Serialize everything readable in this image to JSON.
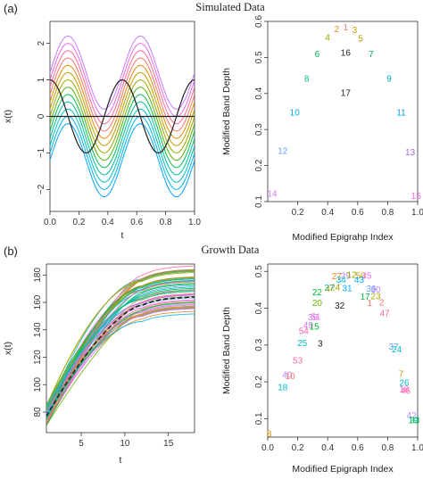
{
  "sections": [
    {
      "label": "(a)",
      "title": "Simulated Data"
    },
    {
      "label": "(b)",
      "title": "Growth Data"
    }
  ],
  "chart_data": [
    {
      "id": "a_curves",
      "type": "line",
      "xlabel": "t",
      "ylabel": "x(t)",
      "xlim": [
        0,
        1
      ],
      "ylim": [
        -2.6,
        2.6
      ],
      "xticks": [
        0.0,
        0.2,
        0.4,
        0.6,
        0.8,
        1.0
      ],
      "xtick_labels": [
        "0.0",
        "0.2",
        "0.4",
        "0.6",
        "0.8",
        "1.0"
      ],
      "yticks": [
        -2,
        -1,
        0,
        1,
        2
      ],
      "ytick_labels": [
        "−2",
        "−1",
        "0",
        "1",
        "2"
      ],
      "curves_model": "x(t) = sin(4·pi·t) + offset",
      "offsets": [
        1.2,
        1.0,
        0.8,
        0.6,
        0.4,
        0.2,
        0.0,
        -0.2,
        -0.4,
        -0.6,
        -0.8,
        -1.0,
        -1.2
      ],
      "reference_lines": [
        {
          "shape": "cos(4·pi·t)",
          "color": "#222222"
        },
        {
          "shape": "0",
          "color": "#222222"
        }
      ],
      "curve_colors": [
        "#C77CFF",
        "#E76BF3",
        "#FF6C91",
        "#F8766D",
        "#E38900",
        "#C49A00",
        "#99A800",
        "#53B400",
        "#00BC56",
        "#00C094",
        "#00BFC4",
        "#00B6EB",
        "#06A4FF",
        "#A58AFF"
      ]
    },
    {
      "id": "a_depth",
      "type": "scatter",
      "xlabel": "Modified Epigrahp Index",
      "ylabel": "Modified Band Depth",
      "xlim": [
        0.0,
        1.0
      ],
      "ylim": [
        0.1,
        0.6
      ],
      "xticks": [
        0.2,
        0.4,
        0.6,
        0.8,
        1.0
      ],
      "xtick_labels": [
        "0.2",
        "0.4",
        "0.6",
        "0.8",
        "1.0"
      ],
      "yticks": [
        0.1,
        0.2,
        0.3,
        0.4,
        0.5,
        0.6
      ],
      "ytick_labels": [
        "0.1",
        "0.2",
        "0.3",
        "0.4",
        "0.5",
        "0.6"
      ],
      "points": [
        {
          "label": "1",
          "x": 0.52,
          "y": 0.582,
          "color": "#F8766D"
        },
        {
          "label": "2",
          "x": 0.46,
          "y": 0.577,
          "color": "#E7861B"
        },
        {
          "label": "3",
          "x": 0.58,
          "y": 0.574,
          "color": "#C09B00"
        },
        {
          "label": "4",
          "x": 0.4,
          "y": 0.553,
          "color": "#A3A500"
        },
        {
          "label": "5",
          "x": 0.62,
          "y": 0.551,
          "color": "#C09B00"
        },
        {
          "label": "6",
          "x": 0.33,
          "y": 0.507,
          "color": "#00A651"
        },
        {
          "label": "16",
          "x": 0.52,
          "y": 0.511,
          "color": "#222222"
        },
        {
          "label": "7",
          "x": 0.69,
          "y": 0.507,
          "color": "#00A651"
        },
        {
          "label": "8",
          "x": 0.26,
          "y": 0.44,
          "color": "#00BA8B"
        },
        {
          "label": "9",
          "x": 0.81,
          "y": 0.44,
          "color": "#00A9B6"
        },
        {
          "label": "17",
          "x": 0.52,
          "y": 0.4,
          "color": "#222222"
        },
        {
          "label": "10",
          "x": 0.18,
          "y": 0.345,
          "color": "#00A2E8"
        },
        {
          "label": "11",
          "x": 0.89,
          "y": 0.345,
          "color": "#00A2E8"
        },
        {
          "label": "12",
          "x": 0.1,
          "y": 0.239,
          "color": "#619CFF"
        },
        {
          "label": "13",
          "x": 0.95,
          "y": 0.235,
          "color": "#9C6AD6"
        },
        {
          "label": "14",
          "x": 0.03,
          "y": 0.12,
          "color": "#C77CFF"
        },
        {
          "label": "15",
          "x": 0.99,
          "y": 0.114,
          "color": "#F564E3"
        }
      ]
    },
    {
      "id": "b_curves",
      "type": "line",
      "xlabel": "t",
      "ylabel": "x(t)",
      "xlim": [
        1,
        18
      ],
      "ylim": [
        65,
        188
      ],
      "xticks": [
        5,
        10,
        15
      ],
      "xtick_labels": [
        "5",
        "10",
        "15"
      ],
      "yticks": [
        80,
        100,
        120,
        140,
        160,
        180
      ],
      "ytick_labels": [
        "80",
        "100",
        "120",
        "140",
        "160",
        "180"
      ],
      "num_curves": 54,
      "final_height_range": [
        152,
        186
      ],
      "start_height_range": [
        70,
        86
      ],
      "curve_colors": [
        "#F8766D",
        "#E7861B",
        "#C99800",
        "#A3A500",
        "#6BB100",
        "#00BA38",
        "#00BF7D",
        "#00C0AF",
        "#00BCD8",
        "#00B0F6",
        "#619CFF",
        "#B983FF",
        "#E76BF3",
        "#FD61D1",
        "#FF67A4"
      ],
      "median_curve": {
        "color": "#222222",
        "dashed": true
      }
    },
    {
      "id": "b_depth",
      "type": "scatter",
      "xlabel": "Modified Epigraph Index",
      "ylabel": "Modified Band Depth",
      "xlim": [
        0.0,
        1.0
      ],
      "ylim": [
        0.05,
        0.52
      ],
      "xticks": [
        0.0,
        0.2,
        0.4,
        0.6,
        0.8,
        1.0
      ],
      "xtick_labels": [
        "0.0",
        "0.2",
        "0.4",
        "0.6",
        "0.8",
        "1.0"
      ],
      "yticks": [
        0.1,
        0.2,
        0.3,
        0.4,
        0.5
      ],
      "ytick_labels": [
        "0.1",
        "0.2",
        "0.3",
        "0.4",
        "0.5"
      ],
      "points": [
        {
          "label": "8",
          "x": 0.01,
          "y": 0.058,
          "color": "#C99800"
        },
        {
          "label": "18",
          "x": 0.1,
          "y": 0.183,
          "color": "#00BCD8"
        },
        {
          "label": "40",
          "x": 0.13,
          "y": 0.218,
          "color": "#B983FF"
        },
        {
          "label": "10",
          "x": 0.15,
          "y": 0.214,
          "color": "#F8766D"
        },
        {
          "label": "53",
          "x": 0.2,
          "y": 0.256,
          "color": "#FF67A4"
        },
        {
          "label": "25",
          "x": 0.23,
          "y": 0.303,
          "color": "#00BFC4"
        },
        {
          "label": "3",
          "x": 0.35,
          "y": 0.302,
          "color": "#222222"
        },
        {
          "label": "54",
          "x": 0.24,
          "y": 0.336,
          "color": "#FF67A4"
        },
        {
          "label": "49",
          "x": 0.27,
          "y": 0.352,
          "color": "#E76BF3"
        },
        {
          "label": "15",
          "x": 0.31,
          "y": 0.348,
          "color": "#00BA38"
        },
        {
          "label": "39",
          "x": 0.3,
          "y": 0.374,
          "color": "#B983FF"
        },
        {
          "label": "51",
          "x": 0.32,
          "y": 0.375,
          "color": "#FD61D1"
        },
        {
          "label": "20",
          "x": 0.33,
          "y": 0.413,
          "color": "#6BB100"
        },
        {
          "label": "22",
          "x": 0.33,
          "y": 0.442,
          "color": "#00BA38"
        },
        {
          "label": "32",
          "x": 0.48,
          "y": 0.405,
          "color": "#222222"
        },
        {
          "label": "37",
          "x": 0.41,
          "y": 0.454,
          "color": "#00B0F6"
        },
        {
          "label": "24",
          "x": 0.45,
          "y": 0.455,
          "color": "#A3A500"
        },
        {
          "label": "4",
          "x": 0.4,
          "y": 0.451,
          "color": "#A3A500"
        },
        {
          "label": "31",
          "x": 0.53,
          "y": 0.453,
          "color": "#00A9FF"
        },
        {
          "label": "27",
          "x": 0.46,
          "y": 0.485,
          "color": "#E7861B"
        },
        {
          "label": "29",
          "x": 0.52,
          "y": 0.487,
          "color": "#B983FF"
        },
        {
          "label": "12",
          "x": 0.56,
          "y": 0.489,
          "color": "#A3A500"
        },
        {
          "label": "50",
          "x": 0.62,
          "y": 0.487,
          "color": "#C99800"
        },
        {
          "label": "45",
          "x": 0.66,
          "y": 0.487,
          "color": "#E76BF3"
        },
        {
          "label": "34",
          "x": 0.49,
          "y": 0.475,
          "color": "#00BCD8"
        },
        {
          "label": "43",
          "x": 0.61,
          "y": 0.476,
          "color": "#00B0F6"
        },
        {
          "label": "36",
          "x": 0.69,
          "y": 0.451,
          "color": "#619CFF"
        },
        {
          "label": "30",
          "x": 0.72,
          "y": 0.449,
          "color": "#B983FF"
        },
        {
          "label": "17",
          "x": 0.65,
          "y": 0.43,
          "color": "#00BA38"
        },
        {
          "label": "23",
          "x": 0.72,
          "y": 0.431,
          "color": "#A3A500"
        },
        {
          "label": "1",
          "x": 0.68,
          "y": 0.413,
          "color": "#F8766D"
        },
        {
          "label": "2",
          "x": 0.76,
          "y": 0.414,
          "color": "#F8766D"
        },
        {
          "label": "47",
          "x": 0.78,
          "y": 0.385,
          "color": "#FF67A4"
        },
        {
          "label": "37",
          "x": 0.84,
          "y": 0.294,
          "color": "#619CFF"
        },
        {
          "label": "24",
          "x": 0.86,
          "y": 0.286,
          "color": "#00BFC4"
        },
        {
          "label": "7",
          "x": 0.89,
          "y": 0.22,
          "color": "#C99800"
        },
        {
          "label": "26",
          "x": 0.91,
          "y": 0.196,
          "color": "#00BFC4"
        },
        {
          "label": "18",
          "x": 0.91,
          "y": 0.179,
          "color": "#FD61D1"
        },
        {
          "label": "46",
          "x": 0.92,
          "y": 0.174,
          "color": "#FF67A4"
        },
        {
          "label": "42",
          "x": 0.96,
          "y": 0.107,
          "color": "#B983FF"
        },
        {
          "label": "19",
          "x": 0.97,
          "y": 0.094,
          "color": "#00BFC4"
        },
        {
          "label": "33",
          "x": 0.98,
          "y": 0.094,
          "color": "#00BA38"
        }
      ]
    }
  ]
}
